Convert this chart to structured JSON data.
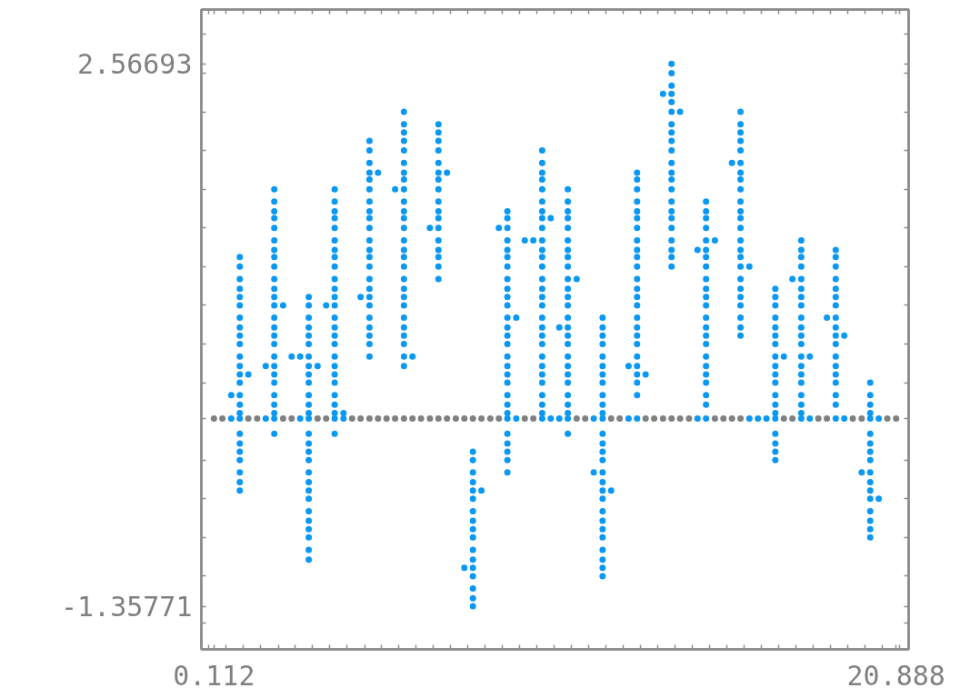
{
  "chart_data": {
    "type": "scatter",
    "marker": "circle",
    "xlim": [
      -0.27,
      21.27
    ],
    "ylim": [
      -1.67,
      2.96
    ],
    "xticks": [
      {
        "value": -0.04,
        "label": null
      },
      0.112,
      {
        "value": 0.49,
        "label": null
      },
      {
        "value": 1.01,
        "label": null
      },
      {
        "value": 1.54,
        "label": null
      },
      {
        "value": 2.07,
        "label": null
      },
      {
        "value": 2.59,
        "label": null
      },
      {
        "value": 3.12,
        "label": null
      },
      {
        "value": 3.64,
        "label": null
      },
      {
        "value": 4.17,
        "label": null
      },
      {
        "value": 4.7,
        "label": null
      },
      {
        "value": 5.22,
        "label": null
      },
      {
        "value": 5.75,
        "label": null
      },
      {
        "value": 6.27,
        "label": null
      },
      {
        "value": 6.8,
        "label": null
      },
      {
        "value": 7.32,
        "label": null
      },
      {
        "value": 7.85,
        "label": null
      },
      {
        "value": 8.38,
        "label": null
      },
      {
        "value": 8.9,
        "label": null
      },
      {
        "value": 9.43,
        "label": null
      },
      {
        "value": 9.95,
        "label": null
      },
      {
        "value": 10.48,
        "label": null
      },
      {
        "value": 11.01,
        "label": null
      },
      {
        "value": 11.53,
        "label": null
      },
      {
        "value": 12.06,
        "label": null
      },
      {
        "value": 12.58,
        "label": null
      },
      {
        "value": 13.11,
        "label": null
      },
      {
        "value": 13.64,
        "label": null
      },
      {
        "value": 14.16,
        "label": null
      },
      {
        "value": 14.69,
        "label": null
      },
      {
        "value": 15.21,
        "label": null
      },
      {
        "value": 15.74,
        "label": null
      },
      {
        "value": 16.26,
        "label": null
      },
      {
        "value": 16.79,
        "label": null
      },
      {
        "value": 17.32,
        "label": null
      },
      {
        "value": 17.84,
        "label": null
      },
      {
        "value": 18.37,
        "label": null
      },
      {
        "value": 18.89,
        "label": null
      },
      {
        "value": 19.42,
        "label": null
      },
      {
        "value": 19.95,
        "label": null
      },
      {
        "value": 20.47,
        "label": null
      },
      20.888,
      {
        "value": 21.0,
        "label": null
      }
    ],
    "yticks": [
      {
        "value": -1.48,
        "label": null
      },
      -1.35771,
      {
        "value": -1.14,
        "label": null
      },
      {
        "value": -0.86,
        "label": null
      },
      {
        "value": -0.58,
        "label": null
      },
      {
        "value": -0.3,
        "label": null
      },
      {
        "value": 0,
        "label": null
      },
      {
        "value": 0.26,
        "label": null
      },
      {
        "value": 0.54,
        "label": null
      },
      {
        "value": 0.82,
        "label": null
      },
      {
        "value": 1.1,
        "label": null
      },
      {
        "value": 1.38,
        "label": null
      },
      {
        "value": 1.66,
        "label": null
      },
      {
        "value": 1.94,
        "label": null
      },
      {
        "value": 2.22,
        "label": null
      },
      {
        "value": 2.5,
        "label": null
      },
      2.56693,
      {
        "value": 2.78,
        "label": null
      }
    ],
    "series": [
      {
        "color": "#808080",
        "x": [
          0.112,
          0.37,
          1.16,
          1.43,
          2.22,
          2.48,
          3.27,
          3.53,
          4.32,
          4.58,
          4.85,
          5.11,
          5.37,
          5.63,
          5.9,
          6.16,
          6.42,
          6.69,
          6.95,
          7.21,
          7.48,
          7.74,
          8.0,
          8.26,
          8.53,
          8.79,
          9.58,
          9.84,
          11.16,
          11.42,
          12.21,
          12.47,
          13.26,
          13.52,
          13.79,
          14.05,
          14.31,
          14.58,
          15.37,
          15.63,
          15.89,
          16.15,
          17.47,
          17.73,
          18.52,
          18.78,
          19.57,
          19.84,
          20.62,
          20.888
        ],
        "values": [
          0,
          0,
          0,
          0,
          0,
          0,
          0,
          0,
          0,
          0,
          0,
          0,
          0,
          0,
          0,
          0,
          0,
          0,
          0,
          0,
          0,
          0,
          0,
          0,
          0,
          0,
          0,
          0,
          0,
          0,
          0,
          0,
          0,
          0,
          0,
          0,
          0,
          0,
          0,
          0,
          0,
          0,
          0,
          0,
          0,
          0,
          0,
          0,
          0,
          0
        ]
      },
      {
        "color": "#0a98f2",
        "x": [
          0.64,
          0.64,
          0.9,
          0.9,
          0.9,
          0.9,
          0.9,
          0.9,
          0.9,
          0.9,
          0.9,
          0.9,
          0.9,
          0.9,
          0.9,
          0.9,
          0.9,
          0.9,
          0.9,
          0.9,
          0.9,
          0.9,
          0.9,
          0.9,
          0.9,
          0.9,
          0.9,
          1.16,
          1.69,
          1.69,
          1.95,
          1.95,
          1.95,
          1.95,
          1.95,
          1.95,
          1.95,
          1.95,
          1.95,
          1.95,
          1.95,
          1.95,
          1.95,
          1.95,
          1.95,
          1.95,
          1.95,
          1.95,
          1.95,
          1.95,
          1.95,
          1.95,
          1.95,
          1.95,
          1.95,
          1.95,
          2.22,
          2.48,
          2.74,
          2.74,
          3.0,
          3.0,
          3.0,
          3.0,
          3.0,
          3.0,
          3.0,
          3.0,
          3.0,
          3.0,
          3.0,
          3.0,
          3.0,
          3.0,
          3.0,
          3.0,
          3.0,
          3.0,
          3.0,
          3.0,
          3.0,
          3.0,
          3.0,
          3.0,
          3.0,
          3.0,
          3.0,
          3.0,
          3.27,
          3.53,
          3.79,
          3.79,
          3.79,
          3.79,
          3.79,
          3.79,
          3.79,
          3.79,
          3.79,
          3.79,
          3.79,
          3.79,
          3.79,
          3.79,
          3.79,
          3.79,
          3.79,
          3.79,
          3.79,
          3.79,
          3.79,
          3.79,
          3.79,
          3.79,
          3.79,
          3.79,
          4.06,
          4.06,
          4.58,
          4.85,
          4.85,
          4.85,
          4.85,
          4.85,
          4.85,
          4.85,
          4.85,
          4.85,
          4.85,
          4.85,
          4.85,
          4.85,
          4.85,
          4.85,
          4.85,
          4.85,
          4.85,
          4.85,
          4.85,
          4.85,
          4.85,
          4.85,
          5.11,
          5.63,
          5.9,
          5.9,
          5.9,
          5.9,
          5.9,
          5.9,
          5.9,
          5.9,
          5.9,
          5.9,
          5.9,
          5.9,
          5.9,
          5.9,
          5.9,
          5.9,
          5.9,
          5.9,
          5.9,
          5.9,
          5.9,
          5.9,
          5.9,
          5.9,
          5.9,
          5.9,
          5.9,
          6.16,
          6.69,
          6.95,
          6.95,
          6.95,
          6.95,
          6.95,
          6.95,
          6.95,
          6.95,
          6.95,
          6.95,
          6.95,
          6.95,
          6.95,
          6.95,
          6.95,
          6.95,
          6.95,
          7.21,
          7.74,
          8.0,
          8.0,
          8.0,
          8.0,
          8.0,
          8.0,
          8.0,
          8.0,
          8.0,
          8.0,
          8.0,
          8.0,
          8.0,
          8.0,
          8.0,
          8.0,
          8.0,
          8.26,
          8.79,
          9.05,
          9.05,
          9.05,
          9.05,
          9.05,
          9.05,
          9.05,
          9.05,
          9.05,
          9.05,
          9.05,
          9.05,
          9.05,
          9.05,
          9.05,
          9.05,
          9.05,
          9.05,
          9.05,
          9.05,
          9.05,
          9.05,
          9.05,
          9.05,
          9.05,
          9.05,
          9.05,
          9.05,
          9.32,
          9.32,
          9.58,
          9.84,
          10.11,
          10.11,
          10.11,
          10.11,
          10.11,
          10.11,
          10.11,
          10.11,
          10.11,
          10.11,
          10.11,
          10.11,
          10.11,
          10.11,
          10.11,
          10.11,
          10.11,
          10.11,
          10.11,
          10.11,
          10.11,
          10.11,
          10.11,
          10.11,
          10.11,
          10.11,
          10.11,
          10.11,
          10.11,
          10.37,
          10.37,
          10.63,
          10.63,
          10.89,
          10.89,
          10.89,
          10.89,
          10.89,
          10.89,
          10.89,
          10.89,
          10.89,
          10.89,
          10.89,
          10.89,
          10.89,
          10.89,
          10.89,
          10.89,
          10.89,
          10.89,
          10.89,
          10.89,
          10.89,
          10.89,
          10.89,
          10.89,
          10.89,
          10.89,
          11.16,
          11.68,
          11.68,
          11.95,
          11.95,
          11.95,
          11.95,
          11.95,
          11.95,
          11.95,
          11.95,
          11.95,
          11.95,
          11.95,
          11.95,
          11.95,
          11.95,
          11.95,
          11.95,
          11.95,
          11.95,
          11.95,
          11.95,
          11.95,
          11.95,
          11.95,
          11.95,
          11.95,
          11.95,
          11.95,
          11.95,
          12.21,
          12.74,
          12.74,
          13.0,
          13.0,
          13.0,
          13.0,
          13.0,
          13.0,
          13.0,
          13.0,
          13.0,
          13.0,
          13.0,
          13.0,
          13.0,
          13.0,
          13.0,
          13.0,
          13.0,
          13.0,
          13.0,
          13.0,
          13.0,
          13.0,
          13.0,
          13.0,
          13.0,
          13.26,
          13.79,
          14.05,
          14.05,
          14.05,
          14.05,
          14.05,
          14.05,
          14.05,
          14.05,
          14.05,
          14.05,
          14.05,
          14.05,
          14.05,
          14.05,
          14.05,
          14.05,
          14.05,
          14.05,
          14.05,
          14.05,
          14.05,
          14.05,
          14.31,
          14.84,
          14.84,
          15.1,
          15.1,
          15.1,
          15.1,
          15.1,
          15.1,
          15.1,
          15.1,
          15.1,
          15.1,
          15.1,
          15.1,
          15.1,
          15.1,
          15.1,
          15.1,
          15.1,
          15.1,
          15.1,
          15.1,
          15.1,
          15.1,
          15.1,
          15.37,
          15.89,
          16.15,
          16.15,
          16.15,
          16.15,
          16.15,
          16.15,
          16.15,
          16.15,
          16.15,
          16.15,
          16.15,
          16.15,
          16.15,
          16.15,
          16.15,
          16.15,
          16.15,
          16.15,
          16.15,
          16.15,
          16.15,
          16.15,
          16.15,
          16.15,
          16.42,
          16.42,
          16.68,
          16.94,
          17.21,
          17.21,
          17.21,
          17.21,
          17.21,
          17.21,
          17.21,
          17.21,
          17.21,
          17.21,
          17.21,
          17.21,
          17.21,
          17.21,
          17.21,
          17.21,
          17.21,
          17.21,
          17.21,
          17.47,
          17.73,
          18.0,
          18.0,
          18.0,
          18.0,
          18.0,
          18.0,
          18.0,
          18.0,
          18.0,
          18.0,
          18.0,
          18.0,
          18.0,
          18.0,
          18.0,
          18.0,
          18.0,
          18.0,
          18.0,
          18.0,
          18.26,
          18.26,
          18.78,
          19.05,
          19.05,
          19.05,
          19.05,
          19.05,
          19.05,
          19.05,
          19.05,
          19.05,
          19.05,
          19.05,
          19.05,
          19.05,
          19.05,
          19.05,
          19.05,
          19.05,
          19.05,
          19.31,
          19.31,
          19.84,
          20.1,
          20.1,
          20.1,
          20.1,
          20.1,
          20.1,
          20.1,
          20.1,
          20.1,
          20.1,
          20.1,
          20.1,
          20.1,
          20.1,
          20.1,
          20.1,
          20.1,
          20.36,
          20.36
        ],
        "values": [
          0.17,
          0,
          1.17,
          1.1,
          1.01,
          0.94,
          0.88,
          0.82,
          0.73,
          0.66,
          0.6,
          0.54,
          0.45,
          0.38,
          0.32,
          0.26,
          0.17,
          0.1,
          0.04,
          0,
          -0.11,
          -0.18,
          -0.24,
          -0.3,
          -0.39,
          -0.46,
          -0.52,
          0.32,
          0.38,
          0,
          1.66,
          1.57,
          1.5,
          1.45,
          1.38,
          1.29,
          1.22,
          1.17,
          1.1,
          1.01,
          0.94,
          0.88,
          0.82,
          0.73,
          0.66,
          0.6,
          0.54,
          0.45,
          0.38,
          0.32,
          0.26,
          0.17,
          0.1,
          0.04,
          0,
          -0.11,
          0.82,
          0.45,
          0.45,
          0,
          0.88,
          0.82,
          0.73,
          0.66,
          0.6,
          0.54,
          0.45,
          0.38,
          0.32,
          0.26,
          0.17,
          0.1,
          0.04,
          0,
          -0.11,
          -0.18,
          -0.24,
          -0.3,
          -0.39,
          -0.46,
          -0.52,
          -0.58,
          -0.67,
          -0.74,
          -0.8,
          -0.86,
          -0.95,
          -1.02,
          0.38,
          0.82,
          1.66,
          1.57,
          1.5,
          1.45,
          1.38,
          1.29,
          1.22,
          1.17,
          1.1,
          1.01,
          0.94,
          0.88,
          0.82,
          0.73,
          0.66,
          0.6,
          0.54,
          0.45,
          0.38,
          0.32,
          0.26,
          0.17,
          0.1,
          0.04,
          0,
          -0.11,
          0.04,
          0,
          0.88,
          2.01,
          1.94,
          1.85,
          1.78,
          1.73,
          1.66,
          1.57,
          1.5,
          1.45,
          1.38,
          1.29,
          1.22,
          1.17,
          1.1,
          1.01,
          0.94,
          0.88,
          0.82,
          0.73,
          0.66,
          0.6,
          0.54,
          0.45,
          1.78,
          1.66,
          2.22,
          2.13,
          2.07,
          2.01,
          1.94,
          1.85,
          1.78,
          1.73,
          1.66,
          1.57,
          1.5,
          1.45,
          1.38,
          1.29,
          1.22,
          1.17,
          1.1,
          1.01,
          0.94,
          0.88,
          0.82,
          0.73,
          0.66,
          0.6,
          0.54,
          0.45,
          0.38,
          0.45,
          1.38,
          2.13,
          2.07,
          2.01,
          1.94,
          1.85,
          1.78,
          1.73,
          1.66,
          1.57,
          1.5,
          1.45,
          1.38,
          1.29,
          1.22,
          1.17,
          1.1,
          1.01,
          1.78,
          -1.08,
          -0.24,
          -0.3,
          -0.39,
          -0.46,
          -0.52,
          -0.58,
          -0.67,
          -0.74,
          -0.8,
          -0.86,
          -0.95,
          -1.02,
          -1.08,
          -1.14,
          -1.23,
          -1.3,
          -1.35771,
          -0.52,
          1.38,
          1.5,
          1.45,
          1.38,
          1.29,
          1.22,
          1.17,
          1.1,
          1.01,
          0.94,
          0.88,
          0.82,
          0.73,
          0.66,
          0.6,
          0.54,
          0.45,
          0.38,
          0.32,
          0.26,
          0.17,
          0.1,
          0.04,
          0,
          -0.11,
          -0.18,
          -0.24,
          -0.3,
          -0.39,
          0.73,
          0,
          1.29,
          1.29,
          1.94,
          1.85,
          1.78,
          1.73,
          1.66,
          1.57,
          1.5,
          1.45,
          1.38,
          1.29,
          1.22,
          1.17,
          1.1,
          1.01,
          0.94,
          0.88,
          0.82,
          0.73,
          0.66,
          0.6,
          0.54,
          0.45,
          0.38,
          0.32,
          0.26,
          0.17,
          0.1,
          0.04,
          0,
          1.45,
          0,
          0.66,
          0,
          1.66,
          1.57,
          1.5,
          1.45,
          1.38,
          1.29,
          1.22,
          1.17,
          1.1,
          1.01,
          0.94,
          0.88,
          0.82,
          0.73,
          0.66,
          0.6,
          0.54,
          0.45,
          0.38,
          0.32,
          0.26,
          0.17,
          0.1,
          0.04,
          0,
          -0.11,
          1.01,
          0,
          -0.39,
          0.73,
          0.66,
          0.6,
          0.54,
          0.45,
          0.38,
          0.32,
          0.26,
          0.17,
          0.1,
          0.04,
          0,
          -0.11,
          -0.18,
          -0.24,
          -0.3,
          -0.39,
          -0.46,
          -0.52,
          -0.58,
          -0.67,
          -0.74,
          -0.8,
          -0.86,
          -0.95,
          -1.02,
          -1.08,
          -1.14,
          -0.52,
          0.38,
          0,
          1.78,
          1.73,
          1.66,
          1.57,
          1.5,
          1.45,
          1.38,
          1.29,
          1.22,
          1.17,
          1.1,
          1.01,
          0.94,
          0.88,
          0.82,
          0.73,
          0.66,
          0.6,
          0.54,
          0.45,
          0.38,
          0.32,
          0.26,
          0.17,
          0,
          0.32,
          2.35,
          2.56693,
          2.5,
          2.41,
          2.35,
          2.29,
          2.22,
          2.13,
          2.07,
          2.01,
          1.94,
          1.85,
          1.78,
          1.73,
          1.66,
          1.57,
          1.5,
          1.45,
          1.38,
          1.29,
          1.22,
          1.17,
          1.1,
          2.22,
          1.22,
          0,
          1.57,
          1.5,
          1.45,
          1.38,
          1.29,
          1.22,
          1.17,
          1.1,
          1.01,
          0.94,
          0.88,
          0.82,
          0.73,
          0.66,
          0.6,
          0.54,
          0.45,
          0.38,
          0.32,
          0.26,
          0.17,
          0.1,
          0,
          1.29,
          1.85,
          2.22,
          2.13,
          2.07,
          2.01,
          1.94,
          1.85,
          1.78,
          1.73,
          1.66,
          1.57,
          1.5,
          1.45,
          1.38,
          1.29,
          1.22,
          1.17,
          1.1,
          1.01,
          0.94,
          0.88,
          0.82,
          0.73,
          0.66,
          0.6,
          1.1,
          0,
          0,
          0,
          0.94,
          0.88,
          0.82,
          0.73,
          0.66,
          0.6,
          0.54,
          0.45,
          0.38,
          0.32,
          0.26,
          0.17,
          0.1,
          0.04,
          0,
          -0.11,
          -0.18,
          -0.24,
          -0.3,
          0.45,
          1.01,
          1.29,
          1.22,
          1.17,
          1.1,
          1.01,
          0.94,
          0.88,
          0.82,
          0.73,
          0.66,
          0.6,
          0.54,
          0.45,
          0.38,
          0.32,
          0.26,
          0.17,
          0.1,
          0.04,
          0,
          0.45,
          0,
          0.73,
          1.22,
          1.17,
          1.1,
          1.01,
          0.94,
          0.88,
          0.82,
          0.73,
          0.66,
          0.6,
          0.54,
          0.45,
          0.38,
          0.32,
          0.26,
          0.17,
          0.1,
          0,
          0.6,
          0,
          -0.39,
          0.26,
          0.17,
          0.1,
          0.04,
          0,
          -0.11,
          -0.18,
          -0.24,
          -0.3,
          -0.39,
          -0.46,
          -0.52,
          -0.58,
          -0.67,
          -0.74,
          -0.8,
          -0.86,
          0,
          -0.58
        ]
      }
    ]
  }
}
